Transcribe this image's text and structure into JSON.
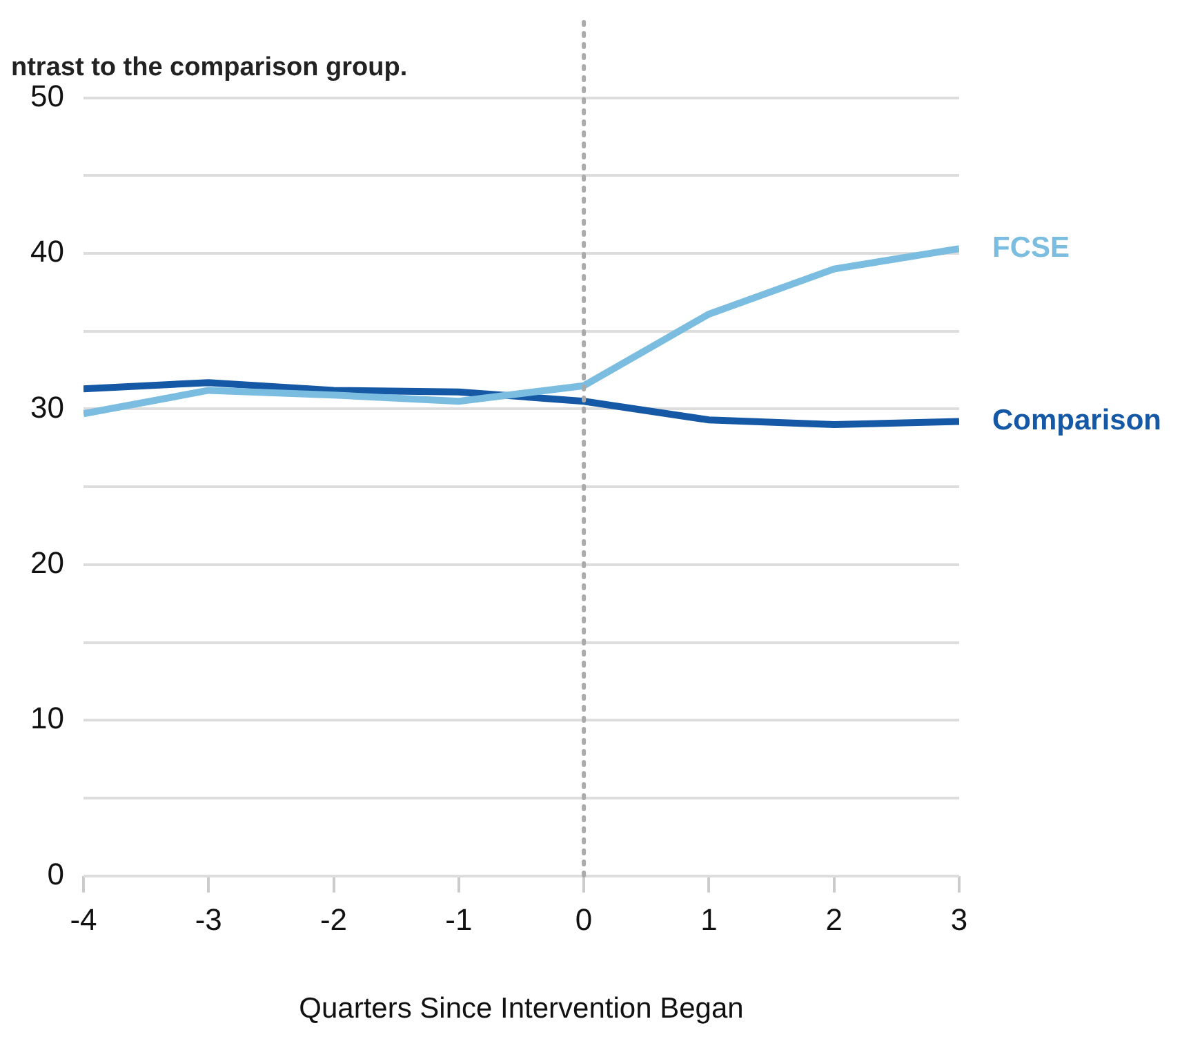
{
  "chart_data": {
    "type": "line",
    "title": "ntrast to the comparison group.",
    "xlabel": "Quarters Since Intervention Began",
    "x": [
      -4,
      -3,
      -2,
      -1,
      0,
      1,
      2,
      3
    ],
    "series": [
      {
        "name": "FCSE",
        "color": "#7bbde0",
        "values": [
          29.7,
          31.2,
          30.9,
          30.5,
          31.5,
          36.1,
          39.0,
          40.3
        ]
      },
      {
        "name": "Comparison",
        "color": "#1558a6",
        "values": [
          31.3,
          31.7,
          31.2,
          31.1,
          30.5,
          29.3,
          29.0,
          29.2
        ]
      }
    ],
    "xlim": [
      -4,
      3
    ],
    "xticks": [
      -4,
      -3,
      -2,
      -1,
      0,
      1,
      2,
      3
    ],
    "ylim": [
      0,
      50
    ],
    "yticks": [
      0,
      {
        "value": 5,
        "label": null
      },
      10,
      {
        "value": 15,
        "label": null
      },
      20,
      {
        "value": 25,
        "label": null
      },
      30,
      {
        "value": 35,
        "label": null
      },
      40,
      {
        "value": 45,
        "label": null
      },
      50
    ],
    "grid": "y",
    "marker": "none",
    "line_style": "solid",
    "ref_lines": [
      {
        "axis": "x",
        "value": 0,
        "color": "#aaaaaa",
        "line_style": "dotted"
      }
    ]
  }
}
